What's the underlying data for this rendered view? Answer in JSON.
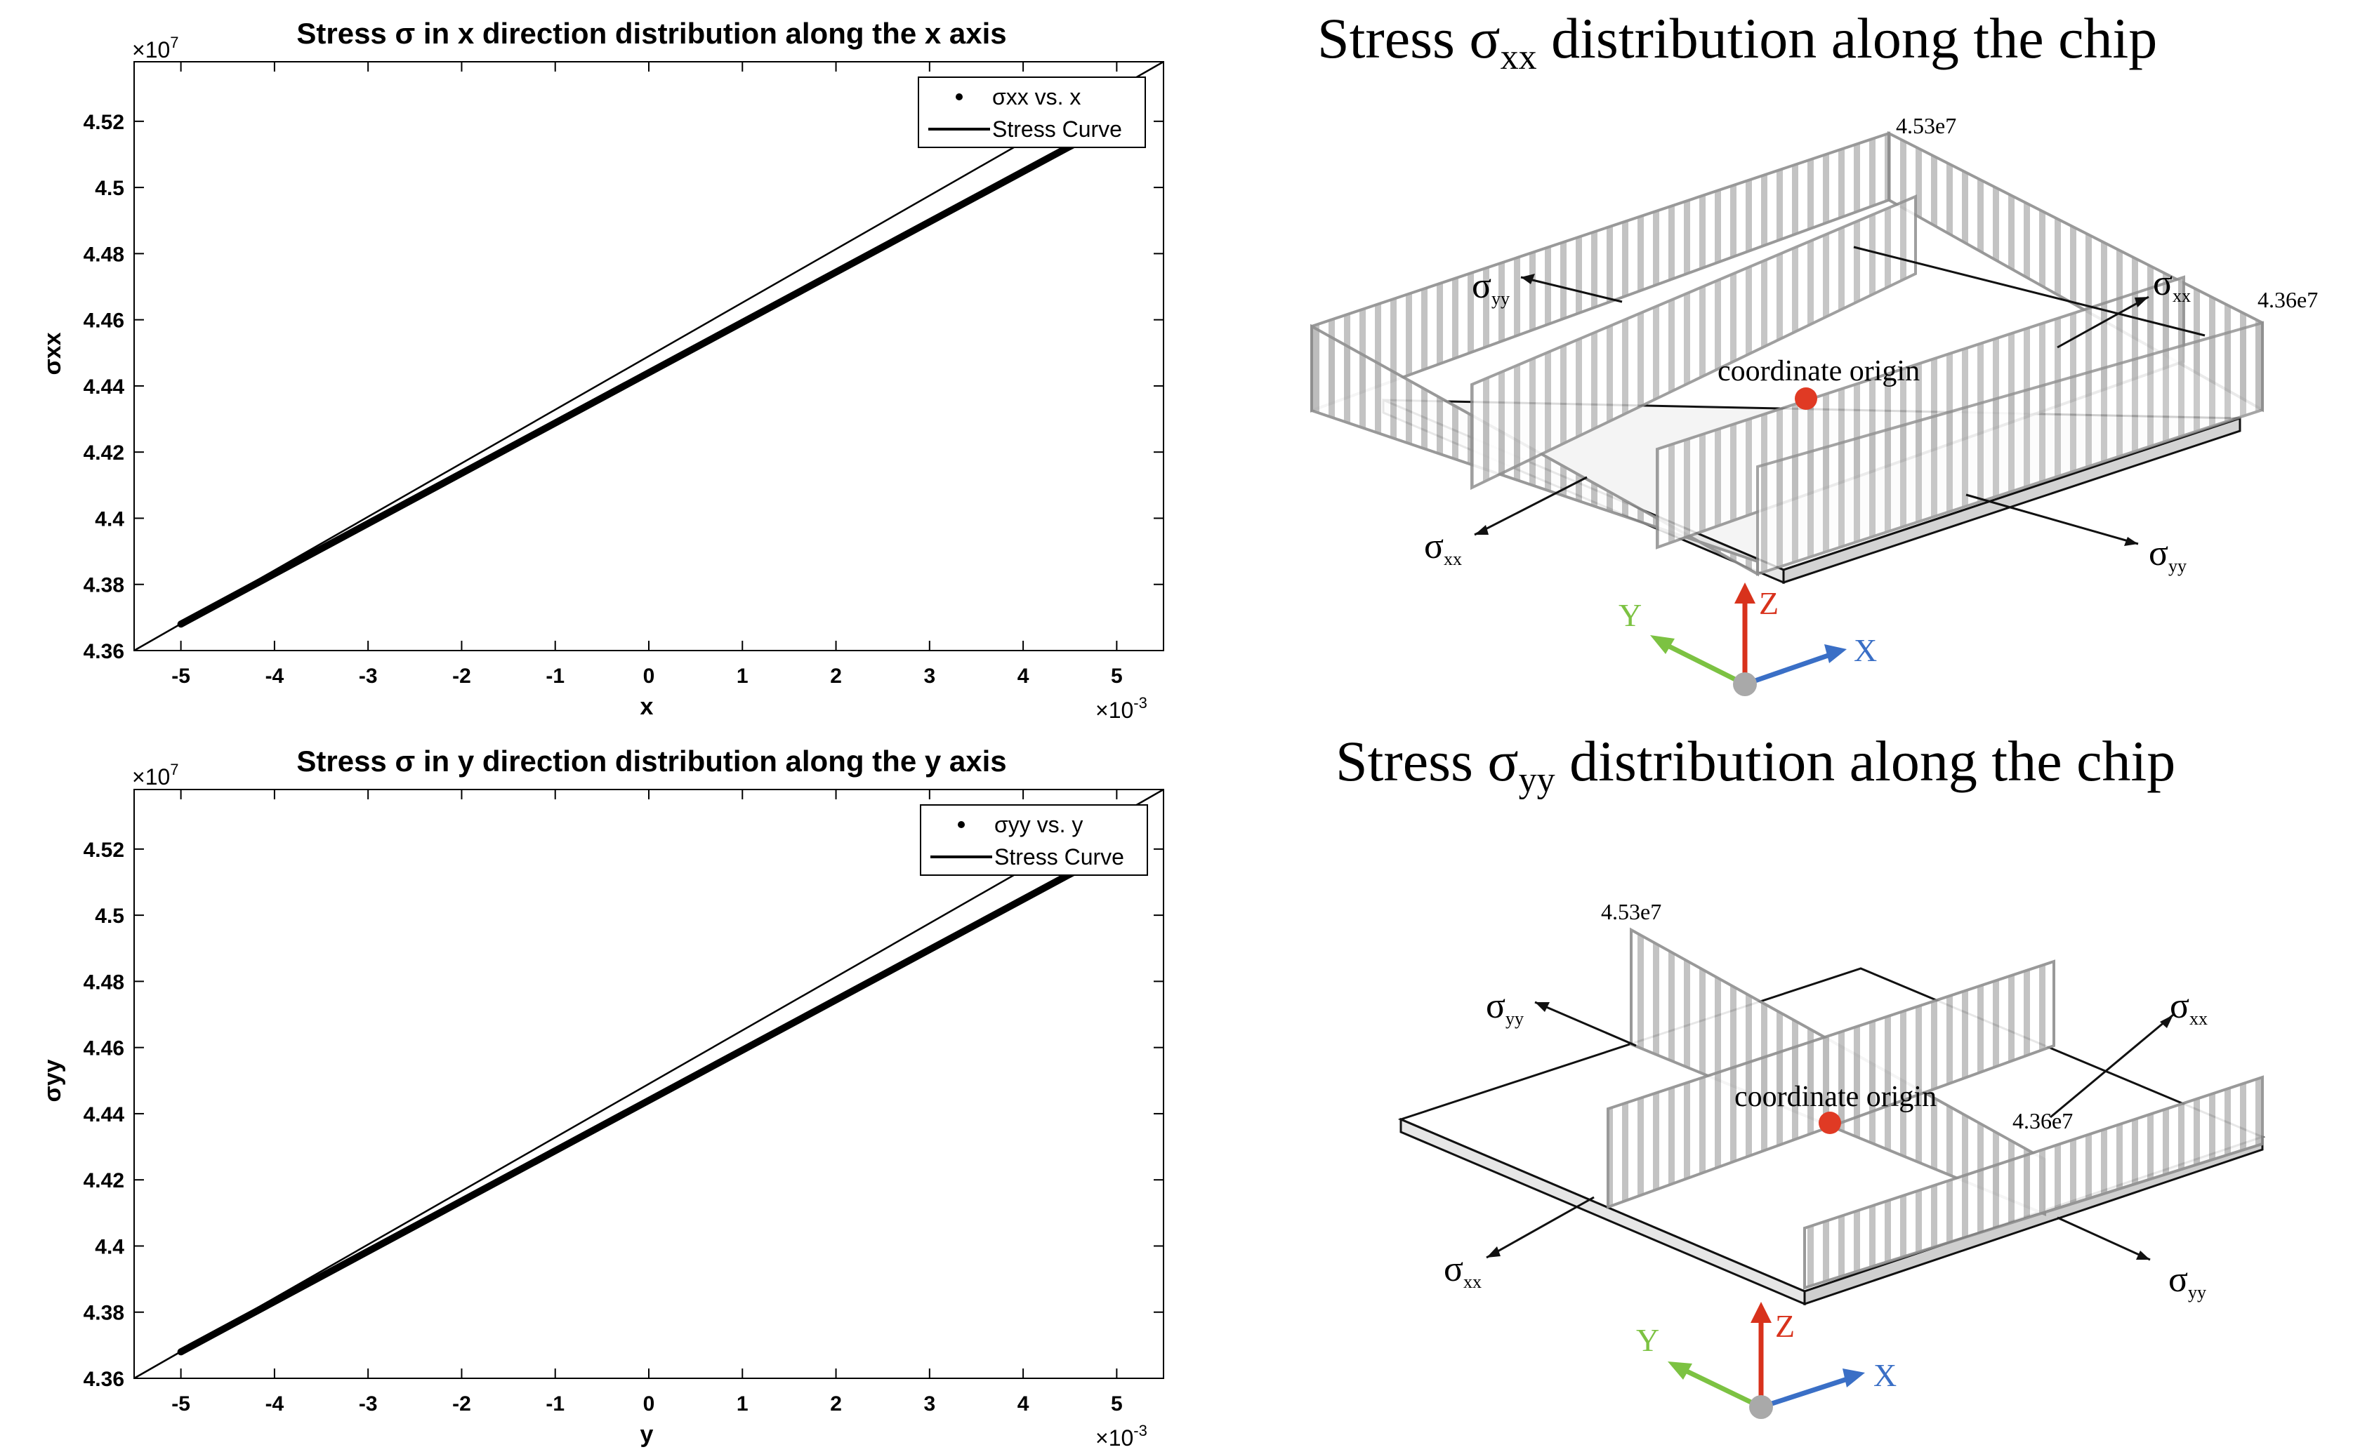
{
  "chart_data": [
    {
      "type": "line",
      "title": "Stress σ in x direction distribution along the x axis",
      "xlabel": "x",
      "ylabel": "σxx",
      "x_exponent_label": "×10",
      "x_exponent": "-3",
      "y_exponent_label": "×10",
      "y_exponent": "7",
      "xlim": [
        -0.0055,
        0.0055
      ],
      "ylim": [
        43600000,
        45380000
      ],
      "xticks": [
        -0.005,
        -0.004,
        -0.003,
        -0.002,
        -0.001,
        0,
        0.001,
        0.002,
        0.003,
        0.004,
        0.005
      ],
      "xtick_labels": [
        "-5",
        "-4",
        "-3",
        "-2",
        "-1",
        "0",
        "1",
        "2",
        "3",
        "4",
        "5"
      ],
      "yticks": [
        43600000,
        43800000,
        44000000,
        44200000,
        44400000,
        44600000,
        44800000,
        45000000,
        45200000
      ],
      "ytick_labels": [
        "4.36",
        "4.38",
        "4.4",
        "4.42",
        "4.44",
        "4.46",
        "4.48",
        "4.5",
        "4.52"
      ],
      "legend_position": "top-right",
      "series": [
        {
          "name": "σxx vs. x",
          "style": "points",
          "x": [
            -0.005,
            0.005
          ],
          "y": [
            43680000,
            45200000
          ]
        },
        {
          "name": "Stress Curve",
          "style": "line",
          "x": [
            -0.0055,
            0.0055
          ],
          "y": [
            43600000,
            45380000
          ]
        }
      ],
      "grid": false
    },
    {
      "type": "line",
      "title": "Stress σ in y direction distribution along the y axis",
      "xlabel": "y",
      "ylabel": "σyy",
      "x_exponent_label": "×10",
      "x_exponent": "-3",
      "y_exponent_label": "×10",
      "y_exponent": "7",
      "xlim": [
        -0.0055,
        0.0055
      ],
      "ylim": [
        43600000,
        45380000
      ],
      "xticks": [
        -0.005,
        -0.004,
        -0.003,
        -0.002,
        -0.001,
        0,
        0.001,
        0.002,
        0.003,
        0.004,
        0.005
      ],
      "xtick_labels": [
        "-5",
        "-4",
        "-3",
        "-2",
        "-1",
        "0",
        "1",
        "2",
        "3",
        "4",
        "5"
      ],
      "yticks": [
        43600000,
        43800000,
        44000000,
        44200000,
        44400000,
        44600000,
        44800000,
        45000000,
        45200000
      ],
      "ytick_labels": [
        "4.36",
        "4.38",
        "4.4",
        "4.42",
        "4.44",
        "4.46",
        "4.48",
        "4.5",
        "4.52"
      ],
      "legend_position": "top-right",
      "series": [
        {
          "name": "σyy vs. y",
          "style": "points",
          "x": [
            -0.005,
            0.005
          ],
          "y": [
            43680000,
            45200000
          ]
        },
        {
          "name": "Stress Curve",
          "style": "line",
          "x": [
            -0.0055,
            0.0055
          ],
          "y": [
            43600000,
            45380000
          ]
        }
      ],
      "grid": false
    }
  ],
  "diagrams": {
    "top": {
      "title_prefix": "Stress σ",
      "title_sub": "xx",
      "title_suffix": " distribution along the chip",
      "label_max": "4.53e7",
      "label_min": "4.36e7",
      "origin_label": "coordinate origin",
      "sigma": "σ",
      "sub_xx": "xx",
      "sub_yy": "yy",
      "axis_x": "X",
      "axis_y": "Y",
      "axis_z": "Z"
    },
    "bottom": {
      "title_prefix": "Stress σ",
      "title_sub": "yy",
      "title_suffix": " distribution along the chip",
      "label_max": "4.53e7",
      "label_min": "4.36e7",
      "origin_label": "coordinate origin",
      "sigma": "σ",
      "sub_xx": "xx",
      "sub_yy": "yy",
      "axis_x": "X",
      "axis_y": "Y",
      "axis_z": "Z"
    },
    "colors": {
      "origin_dot": "#e03a24",
      "axis_x": "#3a6fc6",
      "axis_y": "#7cc242",
      "axis_z": "#d8321c",
      "panel_stroke": "#8f8f8f",
      "stripe": "#b9b9b9"
    }
  }
}
